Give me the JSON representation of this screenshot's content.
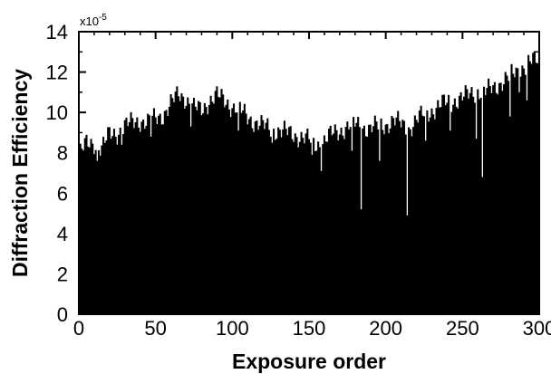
{
  "chart_data": {
    "type": "bar",
    "xlabel": "Exposure order",
    "ylabel": "Diffraction Efficiency",
    "y_multiplier_label": "x10",
    "y_multiplier_exponent": "-5",
    "xlim": [
      0,
      300
    ],
    "ylim": [
      0,
      14
    ],
    "x_ticks": [
      0,
      50,
      100,
      150,
      200,
      250,
      300
    ],
    "y_ticks": [
      0,
      2,
      4,
      6,
      8,
      10,
      12,
      14
    ],
    "grid": false,
    "bar_color": "#000000",
    "envelope": [
      [
        0,
        7.9
      ],
      [
        5,
        8.4
      ],
      [
        10,
        8.5
      ],
      [
        15,
        8.2
      ],
      [
        20,
        8.9
      ],
      [
        25,
        9.0
      ],
      [
        30,
        9.3
      ],
      [
        35,
        9.5
      ],
      [
        40,
        9.6
      ],
      [
        45,
        9.5
      ],
      [
        50,
        9.7
      ],
      [
        55,
        9.9
      ],
      [
        60,
        10.4
      ],
      [
        65,
        10.9
      ],
      [
        70,
        10.7
      ],
      [
        75,
        10.2
      ],
      [
        80,
        10.1
      ],
      [
        85,
        10.6
      ],
      [
        90,
        10.8
      ],
      [
        95,
        10.6
      ],
      [
        100,
        10.3
      ],
      [
        105,
        10.1
      ],
      [
        110,
        9.8
      ],
      [
        115,
        9.5
      ],
      [
        120,
        9.3
      ],
      [
        125,
        9.2
      ],
      [
        130,
        9.1
      ],
      [
        135,
        9.0
      ],
      [
        140,
        8.9
      ],
      [
        145,
        8.8
      ],
      [
        150,
        8.6
      ],
      [
        155,
        8.4
      ],
      [
        160,
        8.6
      ],
      [
        165,
        8.9
      ],
      [
        170,
        9.1
      ],
      [
        175,
        9.3
      ],
      [
        180,
        9.4
      ],
      [
        185,
        9.3
      ],
      [
        190,
        9.2
      ],
      [
        195,
        9.3
      ],
      [
        200,
        9.4
      ],
      [
        205,
        9.6
      ],
      [
        210,
        9.4
      ],
      [
        215,
        9.2
      ],
      [
        220,
        9.6
      ],
      [
        225,
        9.9
      ],
      [
        230,
        10.1
      ],
      [
        235,
        10.3
      ],
      [
        240,
        10.5
      ],
      [
        245,
        10.6
      ],
      [
        250,
        10.7
      ],
      [
        255,
        10.9
      ],
      [
        260,
        11.1
      ],
      [
        265,
        11.0
      ],
      [
        270,
        11.2
      ],
      [
        275,
        11.5
      ],
      [
        280,
        11.7
      ],
      [
        285,
        12.0
      ],
      [
        290,
        12.3
      ],
      [
        295,
        12.5
      ],
      [
        300,
        12.6
      ]
    ],
    "dips": [
      [
        12,
        7.6
      ],
      [
        28,
        8.4
      ],
      [
        47,
        8.8
      ],
      [
        73,
        9.3
      ],
      [
        104,
        9.1
      ],
      [
        126,
        8.5
      ],
      [
        152,
        7.9
      ],
      [
        158,
        7.1
      ],
      [
        178,
        8.1
      ],
      [
        184,
        5.2
      ],
      [
        196,
        7.6
      ],
      [
        214,
        4.9
      ],
      [
        226,
        8.6
      ],
      [
        242,
        9.1
      ],
      [
        259,
        8.7
      ],
      [
        263,
        6.8
      ],
      [
        281,
        9.8
      ],
      [
        287,
        11.0
      ],
      [
        292,
        10.6
      ]
    ]
  }
}
